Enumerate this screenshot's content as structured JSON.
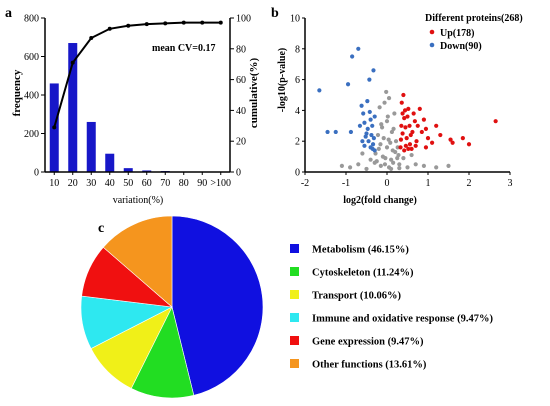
{
  "panel_labels": {
    "a": "a",
    "b": "b",
    "c": "c"
  },
  "chart_data": [
    {
      "panel": "a",
      "type": "bar",
      "categories": [
        "10",
        "20",
        "30",
        "40",
        "50",
        "60",
        "70",
        "80",
        "90",
        ">100"
      ],
      "values": [
        460,
        670,
        260,
        95,
        20,
        8,
        5,
        2,
        1,
        0
      ],
      "cumulative_line": [
        29,
        71,
        87,
        93,
        95,
        96,
        96.5,
        97,
        97,
        97
      ],
      "bar_color": "#1717c8",
      "line_color": "#000000",
      "xlabel": "variation(%)",
      "ylabel": "frequency",
      "y2label": "cumulative(%)",
      "annotation": "mean CV=0.17",
      "ylim": [
        0,
        800
      ],
      "y2lim": [
        0,
        100
      ],
      "yticks": [
        "0",
        "200",
        "400",
        "600",
        "800"
      ],
      "y2ticks": [
        "0",
        "20",
        "40",
        "60",
        "80",
        "100"
      ]
    },
    {
      "panel": "b",
      "type": "scatter",
      "xlabel": "log2(fold change)",
      "ylabel": "-log10(p-value)",
      "xlim": [
        -2,
        3
      ],
      "ylim": [
        0,
        10
      ],
      "xticks": [
        "-2",
        "-1",
        "0",
        "1",
        "2",
        "3"
      ],
      "yticks": [
        "0",
        "2",
        "4",
        "6",
        "8",
        "10"
      ],
      "legend_title": "Different proteins(268)",
      "series": [
        {
          "name": "Up(178)",
          "color": "#e01010",
          "points": [
            [
              2.65,
              3.3
            ],
            [
              2.0,
              1.8
            ],
            [
              1.85,
              2.2
            ],
            [
              1.55,
              2.1
            ],
            [
              1.3,
              2.4
            ],
            [
              1.2,
              3.0
            ],
            [
              1.1,
              1.9
            ],
            [
              0.95,
              2.8
            ],
            [
              0.9,
              3.4
            ],
            [
              0.8,
              4.1
            ],
            [
              0.72,
              2.0
            ],
            [
              0.68,
              3.3
            ],
            [
              0.62,
              2.6
            ],
            [
              0.58,
              2.4
            ],
            [
              0.55,
              3.0
            ],
            [
              0.52,
              4.1
            ],
            [
              0.5,
              3.6
            ],
            [
              0.48,
              2.2
            ],
            [
              0.45,
              2.9
            ],
            [
              0.42,
              3.5
            ],
            [
              0.4,
              5.0
            ],
            [
              0.38,
              2.5
            ],
            [
              0.36,
              4.5
            ],
            [
              0.35,
              3.0
            ],
            [
              0.34,
              2.1
            ],
            [
              0.6,
              1.5
            ],
            [
              0.7,
              1.7
            ],
            [
              0.46,
              1.7
            ],
            [
              1.0,
              2.2
            ],
            [
              1.6,
              1.9
            ],
            [
              0.85,
              2.6
            ],
            [
              0.56,
              1.8
            ],
            [
              0.44,
              4.0
            ],
            [
              0.38,
              3.8
            ],
            [
              0.65,
              3.8
            ],
            [
              0.75,
              3.0
            ],
            [
              0.95,
              1.6
            ],
            [
              0.42,
              1.4
            ],
            [
              0.52,
              1.5
            ],
            [
              0.33,
              1.6
            ]
          ]
        },
        {
          "name": "Down(90)",
          "color": "#3a6fc0",
          "points": [
            [
              -1.65,
              5.3
            ],
            [
              -1.45,
              2.6
            ],
            [
              -1.25,
              2.6
            ],
            [
              -0.88,
              2.6
            ],
            [
              -0.95,
              5.7
            ],
            [
              -0.85,
              7.5
            ],
            [
              -0.7,
              8.0
            ],
            [
              -0.62,
              4.3
            ],
            [
              -0.58,
              3.8
            ],
            [
              -0.55,
              3.2
            ],
            [
              -0.5,
              2.5
            ],
            [
              -0.48,
              4.6
            ],
            [
              -0.45,
              2.0
            ],
            [
              -0.42,
              3.9
            ],
            [
              -0.4,
              3.4
            ],
            [
              -0.38,
              2.4
            ],
            [
              -0.36,
              3.0
            ],
            [
              -0.34,
              1.8
            ],
            [
              -0.32,
              2.2
            ],
            [
              -0.3,
              3.6
            ],
            [
              -0.4,
              1.6
            ],
            [
              -0.55,
              1.7
            ],
            [
              -0.47,
              2.8
            ],
            [
              -0.35,
              1.5
            ],
            [
              -0.6,
              2.0
            ],
            [
              -0.33,
              6.6
            ],
            [
              -0.43,
              6.0
            ],
            [
              -0.52,
              2.3
            ],
            [
              -0.3,
              1.4
            ],
            [
              -0.66,
              3.0
            ]
          ]
        },
        {
          "name": "",
          "color": "#999999",
          "points": [
            [
              0.05,
              0.3
            ],
            [
              -0.05,
              0.5
            ],
            [
              0.1,
              0.8
            ],
            [
              -0.1,
              1.0
            ],
            [
              0.15,
              0.6
            ],
            [
              -0.15,
              0.4
            ],
            [
              0.2,
              1.3
            ],
            [
              -0.2,
              1.5
            ],
            [
              0.08,
              1.9
            ],
            [
              -0.08,
              2.2
            ],
            [
              0.12,
              2.6
            ],
            [
              -0.12,
              2.9
            ],
            [
              0.0,
              3.3
            ],
            [
              0.18,
              3.8
            ],
            [
              -0.18,
              4.2
            ],
            [
              0.05,
              4.8
            ],
            [
              -0.02,
              5.2
            ],
            [
              0.1,
              0.2
            ],
            [
              -0.25,
              0.7
            ],
            [
              0.25,
              0.9
            ],
            [
              0.28,
              1.1
            ],
            [
              -0.28,
              1.2
            ],
            [
              0.3,
              0.5
            ],
            [
              -0.3,
              0.6
            ],
            [
              0.22,
              2.0
            ],
            [
              -0.22,
              2.4
            ],
            [
              0.16,
              2.8
            ],
            [
              -0.14,
              3.1
            ],
            [
              0.02,
              3.6
            ],
            [
              -0.06,
              4.5
            ],
            [
              0.3,
              0.25
            ],
            [
              0.5,
              0.3
            ],
            [
              0.7,
              0.5
            ],
            [
              0.9,
              0.4
            ],
            [
              1.2,
              0.3
            ],
            [
              1.5,
              0.4
            ],
            [
              -0.5,
              0.2
            ],
            [
              -0.7,
              0.5
            ],
            [
              -0.9,
              0.3
            ],
            [
              -1.1,
              0.4
            ],
            [
              0.4,
              0.9
            ],
            [
              -0.4,
              0.8
            ],
            [
              0.6,
              1.1
            ],
            [
              -0.6,
              1.2
            ],
            [
              0.0,
              1.6
            ],
            [
              0.04,
              2.1
            ],
            [
              -0.04,
              0.9
            ],
            [
              0.14,
              1.4
            ],
            [
              -0.16,
              1.8
            ],
            [
              0.26,
              1.6
            ]
          ]
        }
      ]
    },
    {
      "panel": "c",
      "type": "pie",
      "slices": [
        {
          "label": "Metabolism (46.15%)",
          "value": 46.15,
          "color": "#1010e0"
        },
        {
          "label": "Cytoskeleton (11.24%)",
          "value": 11.24,
          "color": "#22dd22"
        },
        {
          "label": "Transport (10.06%)",
          "value": 10.06,
          "color": "#f0f018"
        },
        {
          "label": "Immune and oxidative response (9.47%)",
          "value": 9.47,
          "color": "#2ee8f0"
        },
        {
          "label": "Gene expression (9.47%)",
          "value": 9.47,
          "color": "#f01010"
        },
        {
          "label": "Other functions (13.61%)",
          "value": 13.61,
          "color": "#f5951e"
        }
      ]
    }
  ]
}
